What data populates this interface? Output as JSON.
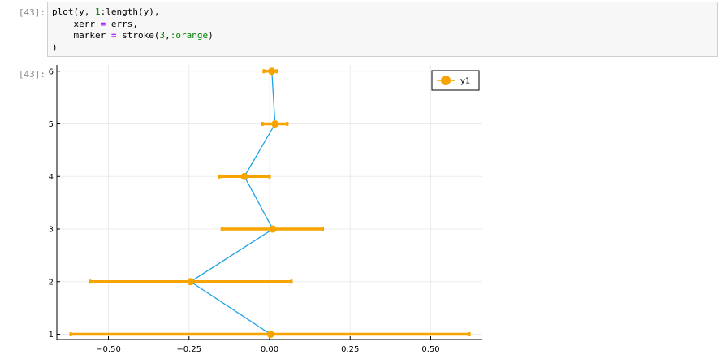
{
  "cell": {
    "input_prompt": "[43]:",
    "output_prompt": "[43]:",
    "code_lines": [
      "plot(y, 1:length(y),",
      "    xerr = errs,",
      "    marker = stroke(3,:orange)",
      ")"
    ]
  },
  "chart_data": {
    "type": "scatter",
    "title": "",
    "xlabel": "",
    "ylabel": "",
    "xlim": [
      -0.66,
      0.66
    ],
    "ylim": [
      0.9,
      6.12
    ],
    "xticks": [
      -0.5,
      -0.25,
      0.0,
      0.25,
      0.5
    ],
    "xtick_labels": [
      "−0.50",
      "−0.25",
      "0.00",
      "0.25",
      "0.50"
    ],
    "yticks": [
      1,
      2,
      3,
      4,
      5,
      6
    ],
    "ytick_labels": [
      "1",
      "2",
      "3",
      "4",
      "5",
      "6"
    ],
    "grid": true,
    "legend_position": "top-right",
    "series": [
      {
        "name": "y1",
        "line_color": "#1fa2e6",
        "marker_color": "#f7a400",
        "points": [
          {
            "x": 0.003,
            "y": 1,
            "xerr_low": -0.617,
            "xerr_high": 0.62
          },
          {
            "x": -0.245,
            "y": 2,
            "xerr_low": -0.557,
            "xerr_high": 0.068
          },
          {
            "x": 0.01,
            "y": 3,
            "xerr_low": -0.148,
            "xerr_high": 0.165
          },
          {
            "x": -0.078,
            "y": 4,
            "xerr_low": -0.156,
            "xerr_high": 0.0
          },
          {
            "x": 0.017,
            "y": 5,
            "xerr_low": -0.022,
            "xerr_high": 0.055
          },
          {
            "x": 0.007,
            "y": 6,
            "xerr_low": -0.018,
            "xerr_high": 0.022
          }
        ]
      }
    ]
  }
}
